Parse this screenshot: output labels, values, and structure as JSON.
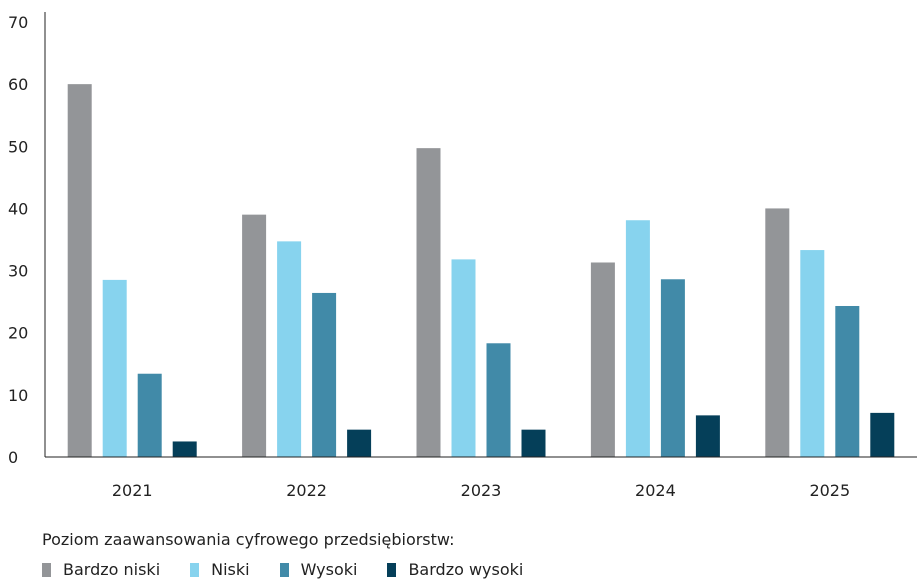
{
  "chart_data": {
    "type": "bar",
    "categories": [
      "2021",
      "2022",
      "2023",
      "2024",
      "2025"
    ],
    "series": [
      {
        "name": "Bardzo niski",
        "color": "#939598",
        "values": [
          60,
          39,
          49.7,
          31.3,
          40
        ]
      },
      {
        "name": "Niski",
        "color": "#87d3ee",
        "values": [
          28.5,
          34.7,
          31.8,
          38.1,
          33.3
        ]
      },
      {
        "name": "Wysoki",
        "color": "#418aa8",
        "values": [
          13.4,
          26.4,
          18.3,
          28.6,
          24.3
        ]
      },
      {
        "name": "Bardzo wysoki",
        "color": "#053f59",
        "values": [
          2.5,
          4.4,
          4.4,
          6.7,
          7.1
        ]
      }
    ],
    "yticks": [
      "0",
      "10",
      "20",
      "30",
      "40",
      "50",
      "60",
      "70"
    ],
    "ylim": [
      0,
      70
    ],
    "grid": false,
    "legend_title": "Poziom zaawansowania cyfrowego przedsiębiorstw:",
    "legend_position": "bottom-left"
  }
}
